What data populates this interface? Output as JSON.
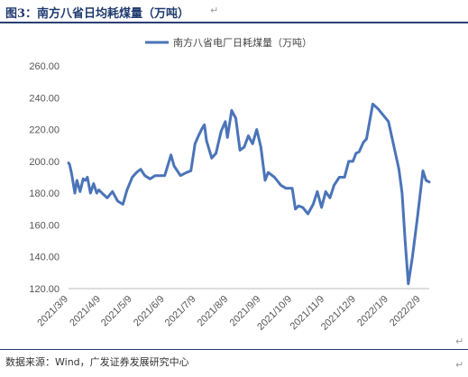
{
  "figure_title": "图3：南方八省日均耗煤量（万吨）",
  "source_text": "数据来源：Wind，广发证券发展研究中心",
  "chart_data": {
    "type": "line",
    "title": "",
    "xlabel": "",
    "ylabel": "",
    "ylim": [
      120,
      260
    ],
    "yticks": [
      "120.00",
      "140.00",
      "160.00",
      "180.00",
      "200.00",
      "220.00",
      "240.00",
      "260.00"
    ],
    "xtick_labels": [
      "2021/3/9",
      "2021/4/9",
      "2021/5/9",
      "2021/6/9",
      "2021/7/9",
      "2021/8/9",
      "2021/9/9",
      "2021/10/9",
      "2021/11/9",
      "2021/12/9",
      "2022/1/9",
      "2022/2/9"
    ],
    "legend_position": "top-center",
    "color": "#4b74b8",
    "grid": false,
    "series": [
      {
        "name": "南方八省电厂日耗煤量（万吨）",
        "x": [
          "2021-03-09",
          "2021-03-10",
          "2021-03-12",
          "2021-03-15",
          "2021-03-17",
          "2021-03-20",
          "2021-03-23",
          "2021-03-25",
          "2021-03-27",
          "2021-03-30",
          "2021-04-02",
          "2021-04-05",
          "2021-04-07",
          "2021-04-10",
          "2021-04-15",
          "2021-04-20",
          "2021-04-25",
          "2021-04-30",
          "2021-05-04",
          "2021-05-09",
          "2021-05-13",
          "2021-05-17",
          "2021-05-21",
          "2021-05-26",
          "2021-05-31",
          "2021-06-05",
          "2021-06-09",
          "2021-06-15",
          "2021-06-18",
          "2021-06-24",
          "2021-06-30",
          "2021-07-04",
          "2021-07-08",
          "2021-07-12",
          "2021-07-15",
          "2021-07-17",
          "2021-07-19",
          "2021-07-24",
          "2021-07-28",
          "2021-08-02",
          "2021-08-06",
          "2021-08-08",
          "2021-08-12",
          "2021-08-16",
          "2021-08-20",
          "2021-08-24",
          "2021-08-28",
          "2021-09-01",
          "2021-09-05",
          "2021-09-09",
          "2021-09-13",
          "2021-09-16",
          "2021-09-22",
          "2021-09-28",
          "2021-10-03",
          "2021-10-09",
          "2021-10-12",
          "2021-10-15",
          "2021-10-19",
          "2021-10-24",
          "2021-10-29",
          "2021-11-02",
          "2021-11-06",
          "2021-11-10",
          "2021-11-14",
          "2021-11-18",
          "2021-11-23",
          "2021-11-28",
          "2021-12-02",
          "2021-12-06",
          "2021-12-09",
          "2021-12-12",
          "2021-12-16",
          "2021-12-19",
          "2021-12-25",
          "2021-12-30",
          "2022-01-04",
          "2022-01-09",
          "2022-01-14",
          "2022-01-19",
          "2022-01-22",
          "2022-01-25",
          "2022-01-28",
          "2022-02-01",
          "2022-02-06",
          "2022-02-11",
          "2022-02-14",
          "2022-02-17"
        ],
        "values": [
          199,
          198,
          192,
          180,
          188,
          181,
          189,
          188,
          190,
          180,
          186,
          180,
          182,
          180,
          177,
          181,
          175,
          173,
          182,
          190,
          193,
          195,
          191,
          189,
          191,
          191,
          191,
          204,
          197,
          191,
          193,
          194,
          211,
          217,
          221,
          223,
          213,
          202,
          205,
          219,
          225,
          215,
          232,
          227,
          207,
          209,
          216,
          211,
          220,
          209,
          188,
          193,
          190,
          185,
          183,
          183,
          170,
          172,
          171,
          167,
          173,
          181,
          171,
          181,
          177,
          185,
          190,
          190,
          200,
          200,
          205,
          206,
          212,
          214,
          236,
          233,
          229,
          225,
          210,
          195,
          180,
          150,
          123,
          140,
          166,
          194,
          188,
          187
        ]
      }
    ]
  }
}
